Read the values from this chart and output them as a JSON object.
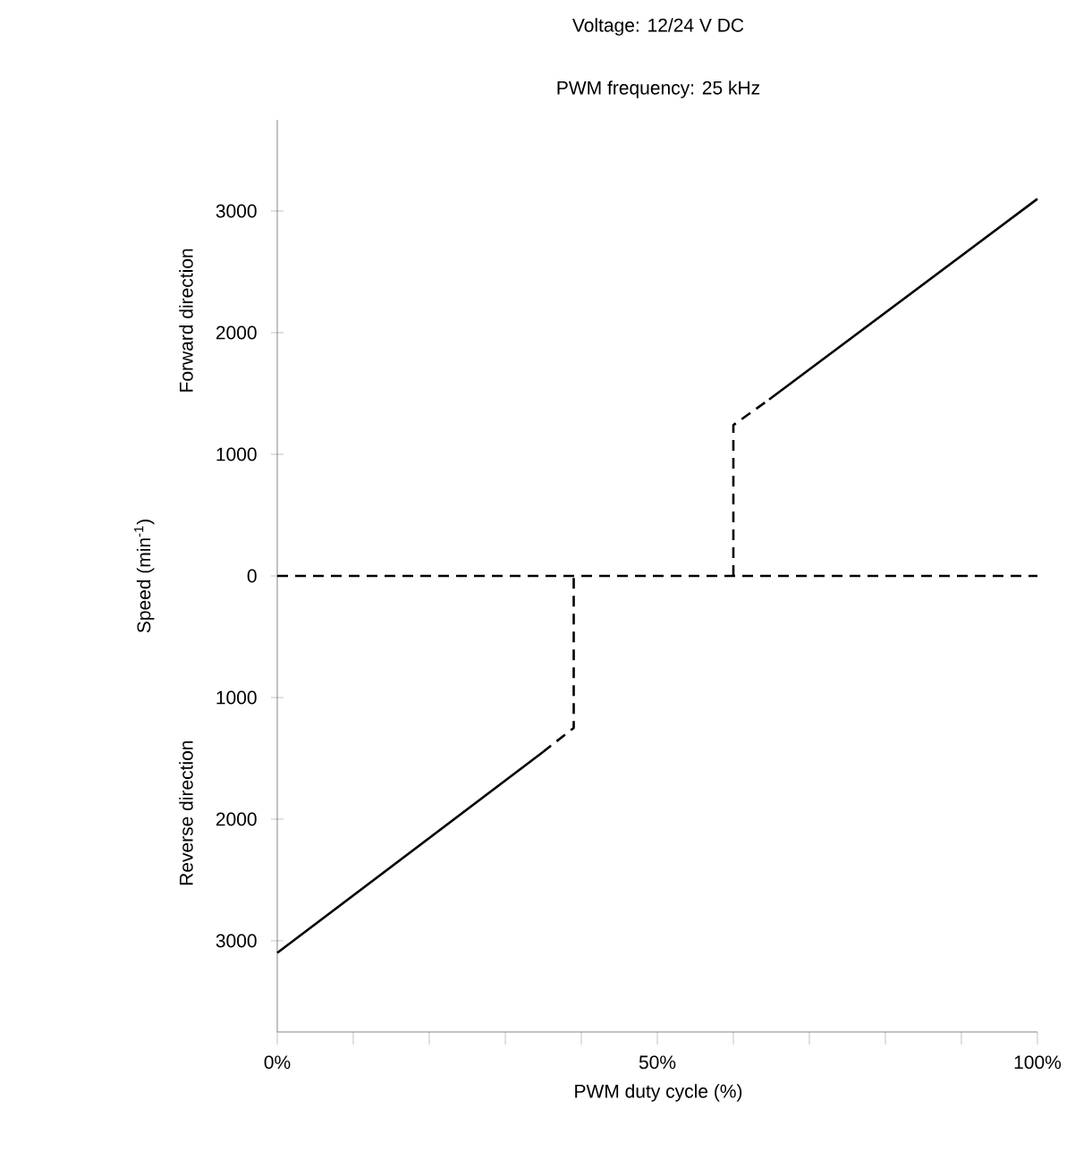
{
  "chart_data": {
    "type": "line",
    "title": "Voltage: 12/24 V DC",
    "subtitle": "PWM frequency: 25 kHz",
    "xlabel": "PWM duty cycle (%)",
    "ylabel": "Speed (min$^{-1}$)",
    "annotations": [
      "Forward direction",
      "Reverse direction"
    ],
    "series": [
      {
        "color": "#000000",
        "line_style": "solid",
        "x": [
          0,
          34.9
        ],
        "values": [
          -3100,
          -1450
        ]
      },
      {
        "color": "#000000",
        "line_style": "dashed",
        "x": [
          34.9,
          39,
          39
        ],
        "values": [
          -1450,
          -1250,
          0
        ]
      },
      {
        "color": "#000000",
        "line_style": "dashed",
        "x": [
          0,
          100
        ],
        "values": [
          0,
          0
        ]
      },
      {
        "color": "#000000",
        "line_style": "dashed",
        "x": [
          60,
          60,
          64.7
        ],
        "values": [
          0,
          1240,
          1450
        ]
      },
      {
        "color": "#000000",
        "line_style": "solid",
        "x": [
          64.7,
          100
        ],
        "values": [
          1450,
          3100
        ]
      }
    ],
    "xlim": [
      0,
      100
    ],
    "ylim": [
      -3750,
      3750
    ],
    "xticks": [
      {
        "value": 0,
        "label": "0%"
      },
      {
        "value": 10,
        "label": null
      },
      {
        "value": 20,
        "label": null
      },
      {
        "value": 30,
        "label": null
      },
      {
        "value": 40,
        "label": null
      },
      {
        "value": 50,
        "label": "50%"
      },
      {
        "value": 60,
        "label": null
      },
      {
        "value": 70,
        "label": null
      },
      {
        "value": 80,
        "label": null
      },
      {
        "value": 90,
        "label": null
      },
      {
        "value": 100,
        "label": "100%"
      }
    ],
    "yticks": [
      {
        "value": -3000,
        "label": "3000"
      },
      {
        "value": -2000,
        "label": "2000"
      },
      {
        "value": -1000,
        "label": "1000"
      },
      0,
      1000,
      2000,
      3000
    ],
    "grid": false
  }
}
